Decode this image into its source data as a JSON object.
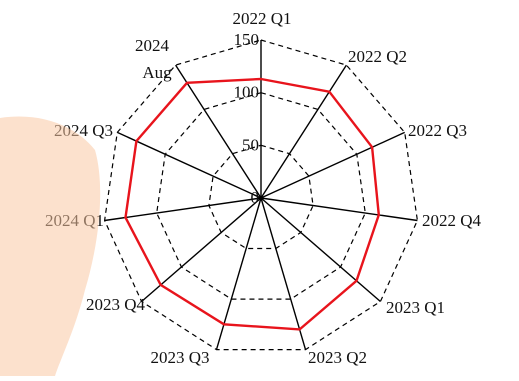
{
  "chart_data": {
    "type": "radar",
    "title": "",
    "categories": [
      "2022 Q1",
      "2022 Q2",
      "2022 Q3",
      "2022 Q4",
      "2023 Q1",
      "2023 Q2",
      "2023 Q3",
      "2023 Q4",
      "2024 Q1",
      "2024 Q3",
      "2024 Aug"
    ],
    "series": [
      {
        "values": [
          113,
          120,
          116,
          113,
          120,
          130,
          125,
          126,
          130,
          130,
          130
        ]
      }
    ],
    "rlim": [
      0,
      150
    ],
    "r_ticks": [
      0,
      50,
      100,
      150
    ],
    "grid": true,
    "colors": {
      "series": "#e8141c",
      "grid": "#000000",
      "watermark": "#f9c8a4"
    }
  }
}
